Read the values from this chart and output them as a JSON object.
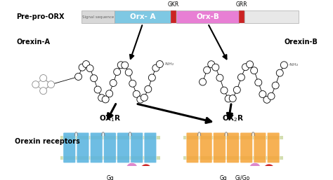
{
  "bg_color": "#ffffff",
  "prepro_label": "Pre-pro-ORX",
  "orexin_a_label": "Orexin-A",
  "orexin_b_label": "Orexin-B",
  "receptors_label": "Orexin receptors",
  "gkr_label": "GKR",
  "grr_label": "GRR",
  "signal_seq_label": "Signal sequence",
  "orxa_label": "Orx- A",
  "orxb_label": "Orx-B",
  "gq_label": "Gq",
  "gqgio_label": "Gi/Go",
  "sig_color": "#d8d8d8",
  "orxa_color": "#7ec8e3",
  "orxb_color": "#e87fd4",
  "red_color": "#cc2222",
  "tail_color": "#e8e8e8",
  "ox1r_color": "#5ab4e0",
  "ox2r_color": "#f5a63c",
  "membrane_color": "#b8c87a",
  "nh2_label": "-NH₂",
  "ball_colors": [
    "#cc2222",
    "#ffcc00",
    "#dd88cc"
  ]
}
